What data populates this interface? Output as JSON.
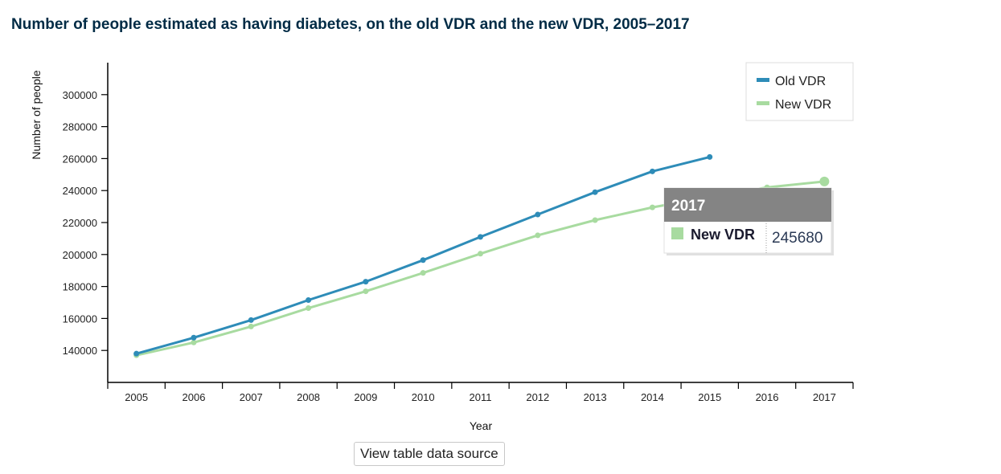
{
  "title": "Number of people estimated as having diabetes, on the old VDR and the new VDR, 2005–2017",
  "source_button_label": "View table data source",
  "chart_data": {
    "type": "line",
    "title": "Number of people estimated as having diabetes, on the old VDR and the new VDR, 2005–2017",
    "xlabel": "Year",
    "ylabel": "Number of people",
    "categories": [
      "2005",
      "2006",
      "2007",
      "2008",
      "2009",
      "2010",
      "2011",
      "2012",
      "2013",
      "2014",
      "2015",
      "2016",
      "2017"
    ],
    "ylim": [
      120000,
      320000
    ],
    "yticks": [
      140000,
      160000,
      180000,
      200000,
      220000,
      240000,
      260000,
      280000,
      300000
    ],
    "grid": false,
    "legend": "top-right",
    "series": [
      {
        "name": "Old VDR",
        "color": "#2e8cb8",
        "values": [
          138000,
          148000,
          159000,
          171500,
          183000,
          196500,
          211000,
          225000,
          239000,
          252000,
          261000,
          null,
          null
        ]
      },
      {
        "name": "New VDR",
        "color": "#a8dba0",
        "values": [
          137000,
          145000,
          155000,
          166500,
          177000,
          188500,
          200500,
          212000,
          221500,
          229500,
          236000,
          242000,
          245680
        ]
      }
    ],
    "tooltip": {
      "title": "2017",
      "series": "New VDR",
      "value": "245680",
      "color": "#a8dba0"
    }
  }
}
